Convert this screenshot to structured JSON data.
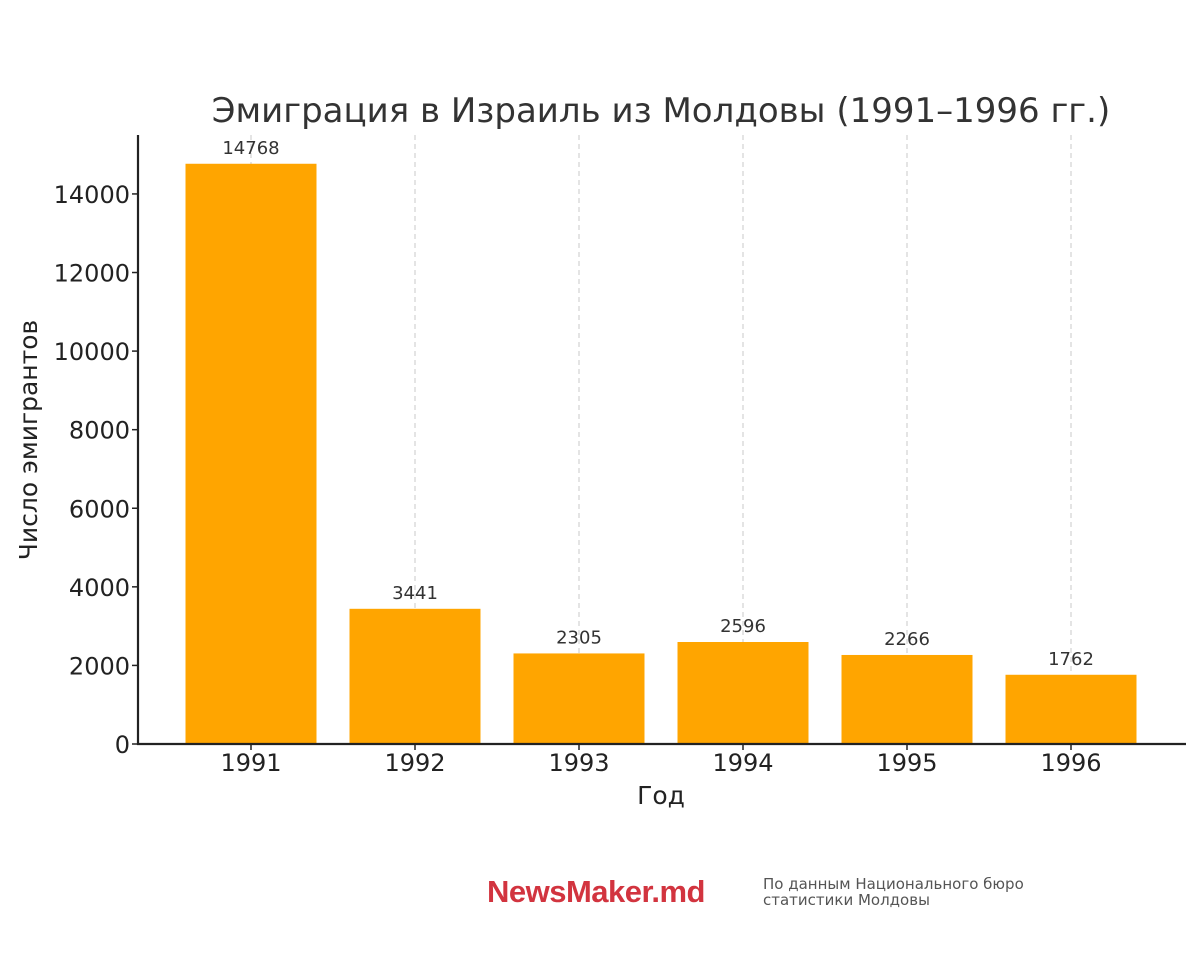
{
  "chart_data": {
    "type": "bar",
    "title": "Эмиграция в Израиль из Молдовы (1991–1996 гг.)",
    "xlabel": "Год",
    "ylabel": "Число эмигрантов",
    "categories": [
      "1991",
      "1992",
      "1993",
      "1994",
      "1995",
      "1996"
    ],
    "values": [
      14768,
      3441,
      2305,
      2596,
      2266,
      1762
    ],
    "data_labels": [
      "14768",
      "3441",
      "2305",
      "2596",
      "2266",
      "1762"
    ],
    "ylim": [
      0,
      15500
    ],
    "yticks": [
      0,
      2000,
      4000,
      6000,
      8000,
      10000,
      12000,
      14000
    ],
    "ytick_labels": [
      "0",
      "2000",
      "4000",
      "6000",
      "8000",
      "10000",
      "12000",
      "14000"
    ],
    "grid": "vertical dashed",
    "bar_color": "#ffa500",
    "grid_color": "#c8c8c8"
  },
  "footer": {
    "brand": "NewsMaker.md",
    "brand_color": "#d2343f",
    "source_line1": "По данным Национального бюро",
    "source_line2": "статистики Молдовы"
  }
}
